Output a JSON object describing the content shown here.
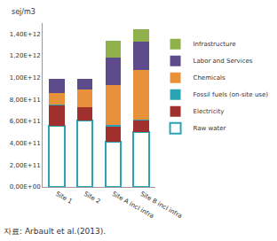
{
  "chart_data": {
    "type": "bar",
    "stacked": true,
    "ylabel": "sej/m3",
    "note": "자료: Arbault et al.(2013).",
    "categories": [
      "Site 1",
      "Site 2",
      "Site A incl infra",
      "Site B incl infra"
    ],
    "series": [
      {
        "name": "Raw water",
        "color": "#2aa3b5",
        "marker": "hollow",
        "values": [
          560000000000,
          610000000000,
          410000000000,
          500000000000
        ]
      },
      {
        "name": "Electricity",
        "color": "#a0302e",
        "values": [
          190000000000,
          120000000000,
          140000000000,
          110000000000
        ]
      },
      {
        "name": "Fossil fuels (on-site use)",
        "color": "#2aa3b5",
        "values": [
          2000000000,
          2000000000,
          20000000000,
          10000000000
        ]
      },
      {
        "name": "Chemicals",
        "color": "#e8913b",
        "values": [
          110000000000,
          160000000000,
          360000000000,
          450000000000
        ]
      },
      {
        "name": "Labor and Services",
        "color": "#5e4b8b",
        "values": [
          130000000000,
          100000000000,
          250000000000,
          260000000000
        ]
      },
      {
        "name": "Infrastructure",
        "color": "#8fb04a",
        "values": [
          0,
          0,
          160000000000,
          110000000000
        ]
      }
    ],
    "ylim": [
      0,
      1500000000000
    ],
    "yticks": [
      {
        "value": 0,
        "label": "0,00E+00"
      },
      {
        "value": 200000000000,
        "label": "2,00E+11"
      },
      {
        "value": 400000000000,
        "label": "4,00E+11"
      },
      {
        "value": 600000000000,
        "label": "6,00E+11"
      },
      {
        "value": 800000000000,
        "label": "8,00E+11"
      },
      {
        "value": 1000000000000,
        "label": "1,00E+12"
      },
      {
        "value": 1200000000000,
        "label": "1,20E+12"
      },
      {
        "value": 1400000000000,
        "label": "1,40E+12"
      }
    ],
    "grid": false,
    "legend": "right"
  }
}
